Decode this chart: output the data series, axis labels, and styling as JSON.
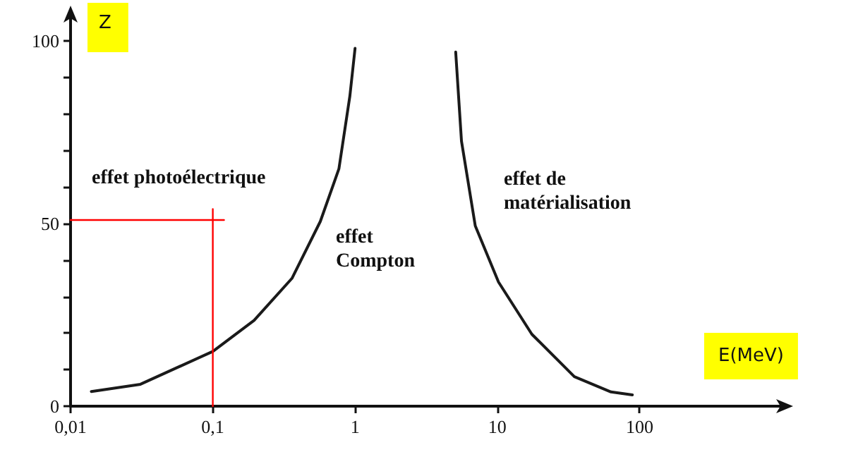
{
  "chart_data": {
    "type": "line",
    "xlabel": "E(MeV)",
    "ylabel": "Z",
    "log": "x",
    "marker": "none",
    "grid": false,
    "xlim": [
      0.01,
      1000
    ],
    "xticks": [
      {
        "value": 0.01,
        "label": "0,01"
      },
      {
        "value": 0.1,
        "label": "0,1"
      },
      {
        "value": 1,
        "label": "1"
      },
      {
        "value": 10,
        "label": "10"
      },
      {
        "value": 100,
        "label": "100"
      }
    ],
    "ylim": [
      0,
      107
    ],
    "yticks": [
      0,
      {
        "value": 10,
        "label": null
      },
      {
        "value": 20,
        "label": null
      },
      {
        "value": 30,
        "label": null
      },
      {
        "value": 40,
        "label": null
      },
      50,
      {
        "value": 60,
        "label": null
      },
      {
        "value": 70,
        "label": null
      },
      {
        "value": 80,
        "label": null
      },
      {
        "value": 90,
        "label": null
      },
      100
    ],
    "series": [
      {
        "color": "#1a1a1a",
        "x": [
          0.014,
          0.031,
          0.1,
          0.195,
          0.36,
          0.57,
          0.77,
          0.92,
          1.0
        ],
        "values": [
          4,
          6,
          15,
          23.5,
          35,
          50.6,
          65,
          85,
          98
        ]
      },
      {
        "color": "#1a1a1a",
        "x": [
          5.1,
          5.6,
          7.0,
          10.2,
          17.5,
          34.8,
          63,
          89
        ],
        "values": [
          97,
          72.6,
          49.4,
          34,
          19.7,
          8.1,
          3.9,
          3.1
        ]
      },
      {
        "color": "#ff0000",
        "x": [
          0.01,
          0.12
        ],
        "values": [
          51,
          51
        ]
      },
      {
        "color": "#ff0000",
        "x": [
          0.1,
          0.1
        ],
        "values": [
          0,
          54
        ]
      }
    ],
    "annotations": [
      "effet photoélectrique",
      "effet\nCompton",
      "effet de\nmatérialisation"
    ]
  }
}
